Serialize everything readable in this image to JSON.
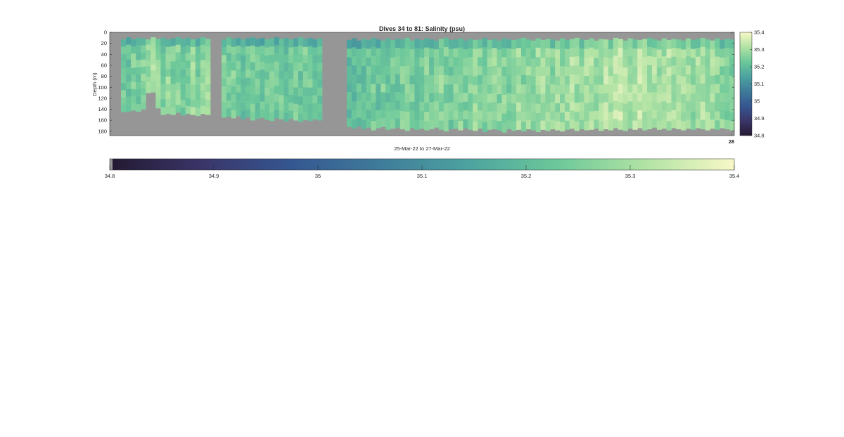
{
  "chart_data": {
    "type": "heatmap",
    "title": "Dives 34 to 81: Salinity (psu)",
    "xlabel": "25-Mar-22 to 27-Mar-22",
    "ylabel": "Depth (m)",
    "x_tick_labels": [
      "28"
    ],
    "ylim": [
      0,
      188
    ],
    "y_reversed": true,
    "y_ticks": [
      0,
      20,
      40,
      60,
      80,
      100,
      120,
      140,
      160,
      180
    ],
    "color_range": [
      34.8,
      35.4
    ],
    "colorbar_ticks": [
      34.8,
      34.9,
      35,
      35.1,
      35.2,
      35.3,
      35.4
    ],
    "colormap": [
      "#241a33",
      "#3a3568",
      "#355691",
      "#3f7b9a",
      "#4ca3a0",
      "#6cc89a",
      "#b1e3a4",
      "#f8f8c8"
    ],
    "colors": {
      "no_data": "#969696",
      "grid": "#262626"
    },
    "dives": {
      "first": 34,
      "last": 81
    },
    "segments": [
      {
        "count": 18,
        "top_depth": [
          13,
          9,
          13,
          10,
          11,
          13,
          9,
          12,
          10,
          13,
          11,
          9,
          12,
          10,
          13,
          11,
          9,
          12
        ],
        "bottom_depth": [
          145,
          144,
          142,
          144,
          140,
          110,
          109,
          138,
          150,
          148,
          150,
          146,
          151,
          148,
          150,
          152,
          148,
          150
        ],
        "mean": [
          35.24,
          35.22,
          35.25,
          35.23,
          35.26,
          35.29,
          35.31,
          35.27,
          35.24,
          35.28,
          35.25,
          35.27,
          35.24,
          35.26,
          35.29,
          35.25,
          35.27,
          35.28
        ]
      },
      {
        "count": 21,
        "top_depth": [
          13,
          9,
          12,
          10,
          13,
          11,
          9,
          12,
          10,
          13,
          11,
          9,
          12,
          10,
          13,
          11,
          9,
          12,
          10,
          13,
          11
        ],
        "bottom_depth": [
          155,
          153,
          156,
          152,
          158,
          154,
          160,
          157,
          155,
          159,
          161,
          156,
          158,
          162,
          157,
          160,
          163,
          159,
          161,
          158,
          160
        ],
        "mean": [
          35.25,
          35.24,
          35.26,
          35.23,
          35.22,
          35.24,
          35.25,
          35.23,
          35.22,
          35.24,
          35.25,
          35.23,
          35.24,
          35.22,
          35.25,
          35.24,
          35.23,
          35.25,
          35.24,
          35.23,
          35.22
        ]
      },
      {
        "count": 80,
        "top_depth": [
          14,
          11,
          15,
          12,
          14,
          10,
          13,
          15,
          11,
          14,
          12,
          13,
          10,
          15,
          12,
          14,
          11,
          13,
          15,
          12,
          10,
          14,
          13,
          11,
          15,
          12,
          14,
          13,
          10,
          14,
          12,
          15,
          11,
          13,
          14,
          12,
          10,
          13,
          15,
          11,
          14,
          12,
          13,
          15,
          11,
          14,
          12,
          10,
          13,
          14,
          11,
          15,
          12,
          13,
          14,
          10,
          12,
          15,
          11,
          13,
          14,
          12,
          10,
          13,
          15,
          11,
          14,
          12,
          13,
          15,
          11,
          14,
          12,
          10,
          13,
          15,
          11,
          14,
          12,
          13
        ],
        "bottom_depth": [
          172,
          175,
          171,
          176,
          173,
          178,
          174,
          172,
          177,
          175,
          173,
          176,
          179,
          174,
          177,
          175,
          178,
          176,
          173,
          177,
          180,
          176,
          175,
          178,
          174,
          177,
          179,
          175,
          181,
          177,
          176,
          178,
          182,
          176,
          179,
          177,
          180,
          176,
          178,
          181,
          177,
          179,
          176,
          178,
          180,
          177,
          175,
          179,
          176,
          178,
          177,
          175,
          179,
          176,
          178,
          174,
          177,
          179,
          175,
          177,
          174,
          178,
          176,
          173,
          177,
          175,
          178,
          174,
          176,
          178,
          175,
          177,
          174,
          176,
          178,
          175,
          177,
          174,
          176,
          178
        ],
        "mean": [
          35.2,
          35.21,
          35.22,
          35.2,
          35.23,
          35.24,
          35.22,
          35.25,
          35.23,
          35.24,
          35.22,
          35.25,
          35.26,
          35.24,
          35.23,
          35.25,
          35.26,
          35.24,
          35.25,
          35.27,
          35.25,
          35.24,
          35.26,
          35.27,
          35.25,
          35.26,
          35.28,
          35.26,
          35.25,
          35.27,
          35.28,
          35.26,
          35.27,
          35.25,
          35.28,
          35.29,
          35.26,
          35.28,
          35.27,
          35.29,
          35.3,
          35.28,
          35.27,
          35.29,
          35.28,
          35.3,
          35.31,
          35.29,
          35.28,
          35.3,
          35.31,
          35.29,
          35.3,
          35.32,
          35.3,
          35.33,
          35.34,
          35.32,
          35.3,
          35.31,
          35.33,
          35.32,
          35.3,
          35.31,
          35.29,
          35.3,
          35.32,
          35.3,
          35.29,
          35.31,
          35.3,
          35.28,
          35.3,
          35.31,
          35.29,
          35.3,
          35.28,
          35.27,
          35.26,
          35.25
        ]
      }
    ]
  }
}
